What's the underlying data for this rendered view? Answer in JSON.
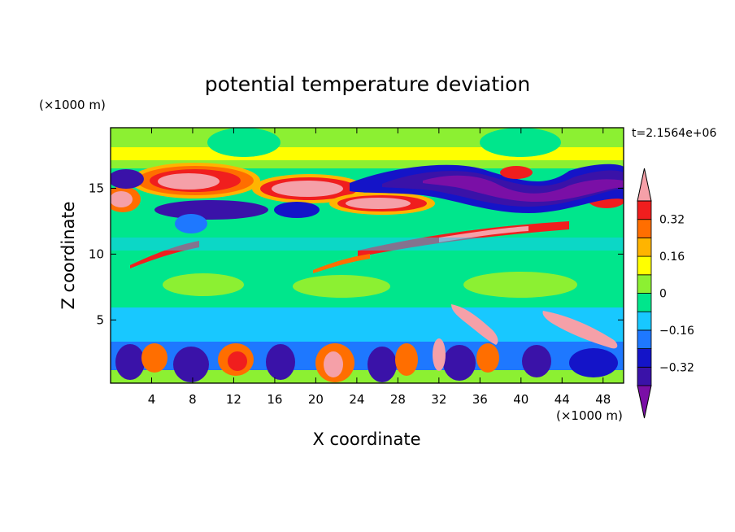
{
  "chart_data": {
    "type": "heatmap",
    "title": "potential temperature deviation",
    "xlabel": "X coordinate",
    "ylabel": "Z coordinate",
    "x_units": "(×1000 m)",
    "y_units": "(×1000 m)",
    "time_label": "t=2.1564e+06",
    "xlim": [
      0,
      50
    ],
    "ylim": [
      0.2,
      19.6
    ],
    "x_ticks": [
      4,
      8,
      12,
      16,
      20,
      24,
      28,
      32,
      36,
      40,
      44,
      48
    ],
    "y_ticks": [
      5,
      10,
      15
    ],
    "colorbar": {
      "levels": [
        -0.4,
        -0.32,
        -0.24,
        -0.16,
        -0.08,
        0,
        0.08,
        0.16,
        0.24,
        0.32,
        0.4
      ],
      "labeled_ticks": [
        0.32,
        0.16,
        0,
        -0.16,
        -0.32
      ],
      "colors": [
        "#7a0fa6",
        "#3a12a8",
        "#1414c8",
        "#1e78ff",
        "#18c8ff",
        "#00e68c",
        "#8cf032",
        "#ffff00",
        "#ffb400",
        "#ff6e00",
        "#f01e1e",
        "#f5a0a8"
      ]
    }
  }
}
